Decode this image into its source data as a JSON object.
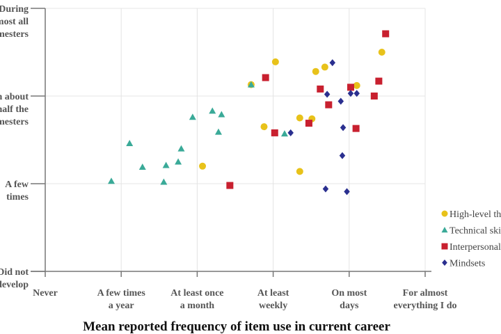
{
  "chart_data": {
    "type": "scatter",
    "title": "",
    "xlabel": "Mean reported frequency of item use in current career",
    "ylabel": "",
    "xlim": [
      0,
      5
    ],
    "ylim": [
      0,
      3
    ],
    "grid": true,
    "legend_position": "right",
    "x_tick_labels": [
      [
        "Never"
      ],
      [
        "A few times",
        "a year"
      ],
      [
        "At least once",
        "a month"
      ],
      [
        "At least",
        "weekly"
      ],
      [
        "On most",
        "days"
      ],
      [
        "For almost",
        "everything I do"
      ]
    ],
    "y_tick_labels": [
      [
        "Did not",
        "develop"
      ],
      [
        "A few",
        "times"
      ],
      [
        "In about",
        "half the",
        "semesters"
      ],
      [
        "During",
        "almost all",
        "semesters"
      ]
    ],
    "series": [
      {
        "name": "High-level thinking",
        "color": "#e8c21a",
        "marker": "circle",
        "points": [
          [
            2.07,
            1.2
          ],
          [
            2.71,
            2.13
          ],
          [
            2.88,
            1.65
          ],
          [
            3.03,
            2.39
          ],
          [
            3.35,
            1.75
          ],
          [
            3.51,
            1.74
          ],
          [
            3.35,
            1.14
          ],
          [
            3.56,
            2.28
          ],
          [
            3.68,
            2.33
          ],
          [
            4.1,
            2.12
          ],
          [
            4.43,
            2.5
          ]
        ]
      },
      {
        "name": "Technical skills",
        "color": "#3aaa98",
        "marker": "triangle",
        "points": [
          [
            0.87,
            1.03
          ],
          [
            1.11,
            1.46
          ],
          [
            1.28,
            1.19
          ],
          [
            1.56,
            1.02
          ],
          [
            1.59,
            1.21
          ],
          [
            1.75,
            1.25
          ],
          [
            1.79,
            1.4
          ],
          [
            1.94,
            1.76
          ],
          [
            2.2,
            1.83
          ],
          [
            2.28,
            1.59
          ],
          [
            2.32,
            1.79
          ],
          [
            2.71,
            2.13
          ],
          [
            3.15,
            1.57
          ]
        ]
      },
      {
        "name": "Interpersonal skills",
        "color": "#c8202f",
        "marker": "square",
        "points": [
          [
            2.43,
            0.98
          ],
          [
            2.9,
            2.21
          ],
          [
            3.02,
            1.58
          ],
          [
            3.47,
            1.69
          ],
          [
            3.62,
            2.08
          ],
          [
            3.73,
            1.9
          ],
          [
            4.02,
            2.1
          ],
          [
            4.09,
            1.63
          ],
          [
            4.33,
            2.0
          ],
          [
            4.39,
            2.17
          ],
          [
            4.48,
            2.71
          ]
        ]
      },
      {
        "name": "Mindsets",
        "color": "#2a2f8f",
        "marker": "diamond",
        "points": [
          [
            3.23,
            1.58
          ],
          [
            3.69,
            0.94
          ],
          [
            3.71,
            2.02
          ],
          [
            3.78,
            2.38
          ],
          [
            3.89,
            1.94
          ],
          [
            3.91,
            1.32
          ],
          [
            3.92,
            1.64
          ],
          [
            3.97,
            0.91
          ],
          [
            4.02,
            2.03
          ],
          [
            4.1,
            2.03
          ]
        ]
      }
    ]
  }
}
